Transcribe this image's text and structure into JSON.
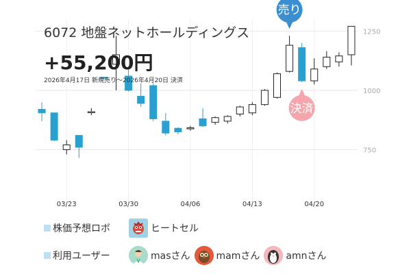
{
  "header": {
    "title": "6072 地盤ネットホールディングス",
    "profit": "+55,200円",
    "period": "2026年4月17日 新規売り～2026年4月20日 決済"
  },
  "markers": {
    "sell": {
      "label": "売り",
      "color": "#3b8fd0",
      "date_index": 20
    },
    "settle": {
      "label": "決済",
      "color": "#f4a6ac",
      "date_index": 21
    }
  },
  "chart_data": {
    "type": "candlestick",
    "y_ticks": [
      750,
      1000,
      1250
    ],
    "y_tick_labels": [
      "750",
      "1000",
      "1250"
    ],
    "ylim": [
      500,
      1300
    ],
    "x_tick_labels": [
      {
        "label": "03/23",
        "index": 2
      },
      {
        "label": "03/30",
        "index": 7
      },
      {
        "label": "04/06",
        "index": 12
      },
      {
        "label": "04/13",
        "index": 17
      },
      {
        "label": "04/20",
        "index": 22
      }
    ],
    "up_color": "#ffffff",
    "down_color": "#2aa0d0",
    "candles": [
      {
        "o": 920,
        "h": 950,
        "l": 870,
        "c": 905
      },
      {
        "o": 905,
        "h": 905,
        "l": 785,
        "c": 790
      },
      {
        "o": 750,
        "h": 790,
        "l": 730,
        "c": 770
      },
      {
        "o": 810,
        "h": 810,
        "l": 715,
        "c": 760
      },
      {
        "o": 910,
        "h": 925,
        "l": 895,
        "c": 910
      },
      {
        "o": 1055,
        "h": 1055,
        "l": 1050,
        "c": 1052
      },
      {
        "o": 1110,
        "h": 1230,
        "l": 1000,
        "c": 1150
      },
      {
        "o": 1060,
        "h": 1100,
        "l": 995,
        "c": 1000
      },
      {
        "o": 975,
        "h": 1030,
        "l": 930,
        "c": 945
      },
      {
        "o": 1020,
        "h": 1030,
        "l": 870,
        "c": 880
      },
      {
        "o": 870,
        "h": 905,
        "l": 810,
        "c": 820
      },
      {
        "o": 840,
        "h": 845,
        "l": 815,
        "c": 825
      },
      {
        "o": 840,
        "h": 850,
        "l": 830,
        "c": 842
      },
      {
        "o": 880,
        "h": 925,
        "l": 845,
        "c": 850
      },
      {
        "o": 865,
        "h": 890,
        "l": 855,
        "c": 885
      },
      {
        "o": 870,
        "h": 895,
        "l": 860,
        "c": 890
      },
      {
        "o": 900,
        "h": 935,
        "l": 890,
        "c": 930
      },
      {
        "o": 905,
        "h": 950,
        "l": 895,
        "c": 940
      },
      {
        "o": 940,
        "h": 1005,
        "l": 935,
        "c": 1000
      },
      {
        "o": 970,
        "h": 1075,
        "l": 965,
        "c": 1070
      },
      {
        "o": 1080,
        "h": 1230,
        "l": 1075,
        "c": 1190
      },
      {
        "o": 1180,
        "h": 1200,
        "l": 1035,
        "c": 1040
      },
      {
        "o": 1040,
        "h": 1135,
        "l": 1025,
        "c": 1090
      },
      {
        "o": 1100,
        "h": 1165,
        "l": 1090,
        "c": 1140
      },
      {
        "o": 1120,
        "h": 1160,
        "l": 1100,
        "c": 1145
      },
      {
        "o": 1150,
        "h": 1270,
        "l": 1105,
        "c": 1270
      }
    ]
  },
  "footer": {
    "robot_label": "株価予想ロボ",
    "robot_name": "ヒートセル",
    "users_label": "利用ユーザー",
    "users": [
      {
        "name": "masさん",
        "icon": "doctor-avatar"
      },
      {
        "name": "mamさん",
        "icon": "owl-avatar"
      },
      {
        "name": "amnさん",
        "icon": "penguin-avatar"
      }
    ]
  }
}
